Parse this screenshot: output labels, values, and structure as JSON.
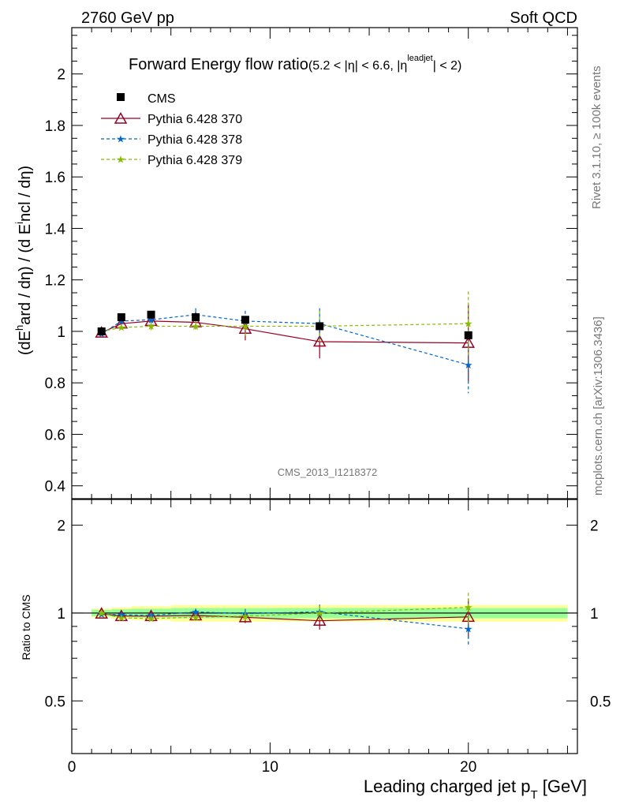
{
  "header": {
    "left": "2760 GeV pp",
    "right": "Soft QCD"
  },
  "side_text": {
    "rivet": "Rivet 3.1.10, ≥ 100k events",
    "mcplots": "mcplots.cern.ch [arXiv:1306.3436]"
  },
  "watermark": "CMS_2013_I1218372",
  "chart_data": {
    "type": "scatter",
    "title": "Forward Energy flow ratio",
    "title_sub": "(5.2 < |η| < 6.6, |η leadjet| < 2)",
    "title_sub_parts": [
      "(5.2 < |η| < 6.6, |η",
      "leadjet",
      "| < 2)"
    ],
    "ylabel": "(dE hard / dη) / (d E incl / dη)",
    "ylabel_parts": [
      "(dE",
      "h",
      "ard / dη) / (d E",
      "i",
      "ncl / dη)"
    ],
    "xlabel": "Leading charged jet pT [GeV]",
    "xlabel_parts": [
      "Leading charged jet p",
      "T",
      " [GeV]"
    ],
    "ratio_ylabel": "Ratio to CMS",
    "xlim": [
      0,
      25.5
    ],
    "ylim": [
      0.35,
      2.18
    ],
    "ratio_ylim": [
      0.33,
      2.45
    ],
    "x_ticks": [
      0,
      10,
      20
    ],
    "y_ticks": [
      0.4,
      0.6,
      0.8,
      1,
      1.2,
      1.4,
      1.6,
      1.8,
      2
    ],
    "ratio_ticks": [
      0.5,
      1,
      2
    ],
    "ratio_tick_labels": [
      "0.5",
      "1",
      "2"
    ],
    "legend_position": "top-left",
    "data": {
      "name": "CMS",
      "color": "#000000",
      "x": [
        1.5,
        2.5,
        4.0,
        6.25,
        8.75,
        12.5,
        20.0
      ],
      "y": [
        1.0,
        1.055,
        1.065,
        1.055,
        1.045,
        1.02,
        0.985
      ]
    },
    "uncertainty_bands": {
      "x_edges": [
        1.0,
        2.0,
        3.0,
        5.0,
        7.5,
        10.0,
        15.0,
        25.0
      ],
      "inner": [
        0.025,
        0.03,
        0.035,
        0.04,
        0.04,
        0.04,
        0.04
      ],
      "outer": [
        0.035,
        0.045,
        0.055,
        0.065,
        0.065,
        0.065,
        0.065
      ]
    },
    "series": [
      {
        "name": "Pythia 6.428 370",
        "color": "#990022",
        "style": "solid",
        "marker": "triangle",
        "x": [
          1.5,
          2.5,
          4.0,
          6.25,
          8.75,
          12.5,
          20.0
        ],
        "y": [
          0.995,
          1.03,
          1.04,
          1.035,
          1.01,
          0.96,
          0.955
        ],
        "err": [
          0.01,
          0.01,
          0.015,
          0.02,
          0.045,
          0.065,
          0.15
        ],
        "ratio": [
          0.995,
          0.976,
          0.976,
          0.981,
          0.967,
          0.941,
          0.97
        ]
      },
      {
        "name": "Pythia 6.428 378",
        "color": "#0066cc",
        "style": "dashed",
        "marker": "star",
        "x": [
          1.5,
          2.5,
          4.0,
          6.25,
          8.75,
          12.5,
          20.0
        ],
        "y": [
          0.99,
          1.04,
          1.045,
          1.065,
          1.04,
          1.03,
          0.87
        ],
        "err": [
          0.01,
          0.01,
          0.015,
          0.025,
          0.04,
          0.06,
          0.11
        ],
        "ratio": [
          0.99,
          0.986,
          0.981,
          1.009,
          0.995,
          1.01,
          0.883
        ]
      },
      {
        "name": "Pythia 6.428 379",
        "color": "#88bb00",
        "style": "dashed",
        "marker": "star",
        "x": [
          1.5,
          2.5,
          4.0,
          6.25,
          8.75,
          12.5,
          20.0
        ],
        "y": [
          1.0,
          1.015,
          1.02,
          1.02,
          1.02,
          1.02,
          1.03
        ],
        "err": [
          0.01,
          0.01,
          0.015,
          0.02,
          0.04,
          0.06,
          0.125
        ],
        "ratio": [
          1.0,
          0.962,
          0.958,
          0.967,
          0.976,
          1.0,
          1.046
        ]
      }
    ]
  }
}
